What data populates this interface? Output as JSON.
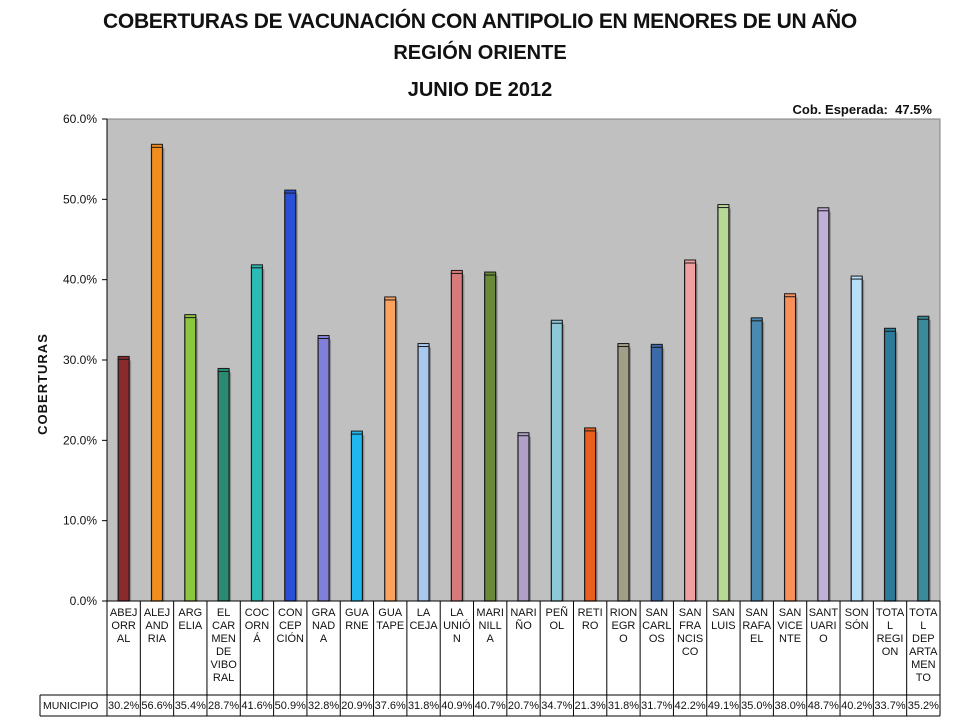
{
  "chart_data": {
    "type": "bar",
    "title": "COBERTURAS DE VACUNACIÓN CON ANTIPOLIO EN MENORES DE UN AÑO",
    "subtitle": "REGIÓN ORIENTE",
    "period": "JUNIO DE 2012",
    "expected_label": "Cob. Esperada:",
    "expected_value": "47.5%",
    "ylabel": "COBERTURAS",
    "ylim": [
      0,
      60
    ],
    "yticks": [
      "0.0%",
      "10.0%",
      "20.0%",
      "30.0%",
      "40.0%",
      "50.0%",
      "60.0%"
    ],
    "grid": false,
    "plot_background": "#c0c0c0",
    "series_name": "MUNICIPIO",
    "categories": [
      [
        "ABEJ",
        "ORR",
        "AL"
      ],
      [
        "ALEJ",
        "AND",
        "RIA"
      ],
      [
        "ARG",
        "ELIA"
      ],
      [
        "EL",
        "CAR",
        "MEN",
        "DE",
        "VIBO",
        "RAL"
      ],
      [
        "COC",
        "ORN",
        "Á"
      ],
      [
        "CON",
        "CEP",
        "CIÓN"
      ],
      [
        "GRA",
        "NAD",
        "A"
      ],
      [
        "GUA",
        "RNE"
      ],
      [
        "GUA",
        "TAPE"
      ],
      [
        "LA",
        "CEJA"
      ],
      [
        "LA",
        "UNIÓ",
        "N"
      ],
      [
        "MARI",
        "NILL",
        "A"
      ],
      [
        "NARI",
        "ÑO"
      ],
      [
        "PEÑ",
        "OL"
      ],
      [
        "RETI",
        "RO"
      ],
      [
        "RION",
        "EGR",
        "O"
      ],
      [
        "SAN",
        "CARL",
        "OS"
      ],
      [
        "SAN",
        "FRA",
        "NCIS",
        "CO"
      ],
      [
        "SAN",
        "LUIS"
      ],
      [
        "SAN",
        "RAFA",
        "EL"
      ],
      [
        "SAN",
        "VICE",
        "NTE"
      ],
      [
        "SANT",
        "UARI",
        "O"
      ],
      [
        "SON",
        "SÓN"
      ],
      [
        "TOTA",
        "L",
        "REGI",
        "ON"
      ],
      [
        "TOTA",
        "L",
        "DEP",
        "ARTA",
        "MEN",
        "TO"
      ]
    ],
    "values": [
      30.2,
      56.6,
      35.4,
      28.7,
      41.6,
      50.9,
      32.8,
      20.9,
      37.6,
      31.8,
      40.9,
      40.7,
      20.7,
      34.7,
      21.3,
      31.8,
      31.7,
      42.2,
      49.1,
      35.0,
      38.0,
      48.7,
      40.2,
      33.7,
      35.2
    ],
    "value_labels": [
      "30.2%",
      "56.6%",
      "35.4%",
      "28.7%",
      "41.6%",
      "50.9%",
      "32.8%",
      "20.9%",
      "37.6%",
      "31.8%",
      "40.9%",
      "40.7%",
      "20.7%",
      "34.7%",
      "21.3%",
      "31.8%",
      "31.7%",
      "42.2%",
      "49.1%",
      "35.0%",
      "38.0%",
      "48.7%",
      "40.2%",
      "33.7%",
      "35.2%"
    ],
    "colors": [
      "#8b2a2e",
      "#f28c1c",
      "#8cc63e",
      "#2a8a72",
      "#2cbcb8",
      "#2a4fd6",
      "#8080d8",
      "#1fb7ee",
      "#fba35e",
      "#a8c8ee",
      "#d97a7a",
      "#6a8a3a",
      "#b0a0c8",
      "#8cc8d8",
      "#e8601c",
      "#a0a088",
      "#3a6aa8",
      "#f0a0a0",
      "#b8d898",
      "#4a8ab0",
      "#f8905a",
      "#c0b0d8",
      "#b8e0f8",
      "#2a7a9a",
      "#3a8a9a"
    ]
  }
}
